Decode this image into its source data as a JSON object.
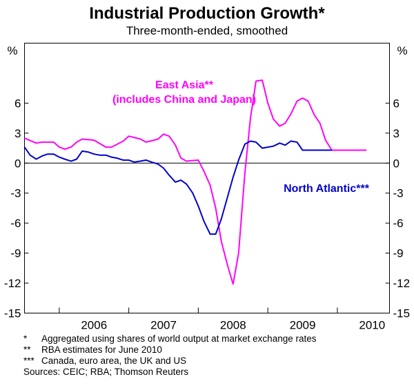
{
  "chart_data": {
    "type": "line",
    "title": "Industrial Production Growth*",
    "subtitle": "Three-month-ended, smoothed",
    "ylabel_left": "%",
    "ylabel_right": "%",
    "ylim": [
      -15,
      12
    ],
    "yticks": [
      -15,
      -12,
      -9,
      -6,
      -3,
      0,
      3,
      6
    ],
    "xlim": [
      2005.5,
      2010.75
    ],
    "x_tick_labels": [
      "2006",
      "2007",
      "2008",
      "2009",
      "2010"
    ],
    "series": [
      {
        "name": "East Asia**",
        "annotation": [
          "East Asia**",
          "(includes China and Japan)"
        ],
        "color": "#ff00ff",
        "x": [
          2005.5,
          2005.67,
          2005.75,
          2005.92,
          2006.0,
          2006.08,
          2006.17,
          2006.25,
          2006.33,
          2006.5,
          2006.67,
          2006.75,
          2006.92,
          2007.0,
          2007.17,
          2007.25,
          2007.42,
          2007.5,
          2007.58,
          2007.67,
          2007.75,
          2007.83,
          2008.0,
          2008.08,
          2008.17,
          2008.25,
          2008.33,
          2008.42,
          2008.5,
          2008.58,
          2008.67,
          2008.75,
          2008.83,
          2008.92,
          2009.0,
          2009.08,
          2009.17,
          2009.25,
          2009.33,
          2009.42,
          2009.5,
          2009.58,
          2009.67,
          2009.75,
          2009.83,
          2009.92,
          2010.0,
          2010.08,
          2010.17,
          2010.25,
          2010.33,
          2010.42
        ],
        "values": [
          2.5,
          2.0,
          2.1,
          2.1,
          1.6,
          1.4,
          1.6,
          2.1,
          2.4,
          2.3,
          1.6,
          1.6,
          2.2,
          2.7,
          2.4,
          2.1,
          2.4,
          2.9,
          2.7,
          1.8,
          0.5,
          0.2,
          0.3,
          -0.8,
          -2.2,
          -4.5,
          -7.8,
          -10.2,
          -12.1,
          -9.0,
          -1.0,
          4.5,
          8.2,
          8.3,
          6.0,
          4.4,
          3.7,
          4.0,
          4.9,
          6.2,
          6.5,
          6.2,
          4.8,
          4.0,
          2.3,
          1.3,
          1.3,
          1.3,
          1.3,
          1.3,
          1.3,
          1.3
        ]
      },
      {
        "name": "North Atlantic***",
        "annotation": [
          "North Atlantic***"
        ],
        "color": "#0000cc",
        "x": [
          2005.5,
          2005.58,
          2005.67,
          2005.75,
          2005.83,
          2005.92,
          2006.0,
          2006.08,
          2006.17,
          2006.25,
          2006.33,
          2006.42,
          2006.5,
          2006.58,
          2006.67,
          2006.75,
          2006.83,
          2006.92,
          2007.0,
          2007.08,
          2007.17,
          2007.25,
          2007.33,
          2007.42,
          2007.5,
          2007.58,
          2007.67,
          2007.75,
          2007.83,
          2007.92,
          2008.0,
          2008.08,
          2008.17,
          2008.25,
          2008.33,
          2008.42,
          2008.5,
          2008.58,
          2008.67,
          2008.75,
          2008.83,
          2008.92,
          2009.0,
          2009.08,
          2009.17,
          2009.25,
          2009.33,
          2009.42,
          2009.5,
          2009.58,
          2009.67,
          2009.75,
          2009.83,
          2009.92
        ],
        "values": [
          1.6,
          0.8,
          0.4,
          0.7,
          0.9,
          0.9,
          0.6,
          0.4,
          0.2,
          0.4,
          1.2,
          1.1,
          0.9,
          0.8,
          0.8,
          0.6,
          0.5,
          0.3,
          0.3,
          0.1,
          0.2,
          0.3,
          0.1,
          -0.1,
          -0.5,
          -1.2,
          -1.9,
          -1.7,
          -2.1,
          -3.0,
          -4.3,
          -5.8,
          -7.1,
          -7.1,
          -5.6,
          -3.4,
          -1.4,
          0.3,
          1.9,
          2.2,
          2.1,
          1.5,
          1.6,
          1.7,
          2.0,
          1.8,
          2.2,
          2.1,
          1.3,
          1.3,
          1.3,
          1.3,
          1.3,
          1.3
        ]
      }
    ],
    "grid": false,
    "zero_line": true
  },
  "footnotes": [
    {
      "mark": "*",
      "text": "Aggregated using shares of world output at market exchange rates"
    },
    {
      "mark": "**",
      "text": "RBA estimates for June 2010"
    },
    {
      "mark": "***",
      "text": "Canada, euro area, the UK and US"
    }
  ],
  "sources": "Sources: CEIC; RBA; Thomson Reuters"
}
